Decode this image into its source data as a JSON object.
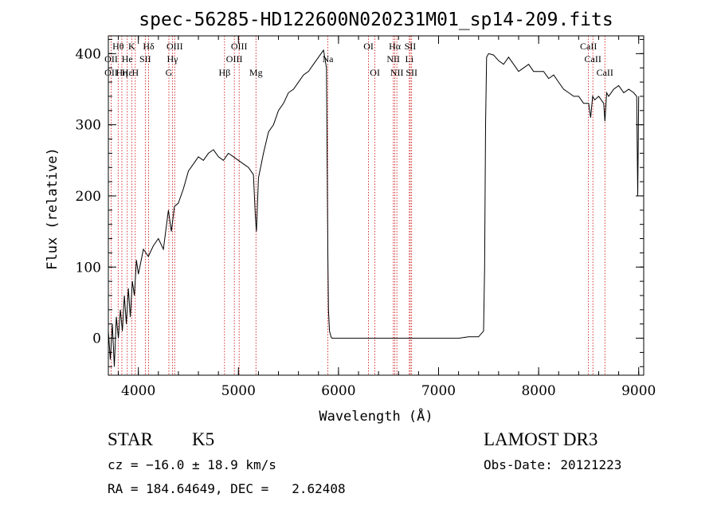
{
  "chart_data": {
    "type": "line",
    "title": "spec-56285-HD122600N020231M01_sp14-209.fits",
    "xlabel": "Wavelength (Å)",
    "ylabel": "Flux (relative)",
    "xlim": [
      3700,
      9050
    ],
    "ylim": [
      -52,
      425
    ],
    "xticks": [
      4000,
      5000,
      6000,
      7000,
      8000,
      9000
    ],
    "yticks": [
      0,
      100,
      200,
      300,
      400
    ],
    "grid": false,
    "series": [
      {
        "x": [
          3700,
          3720,
          3740,
          3760,
          3780,
          3800,
          3820,
          3840,
          3860,
          3880,
          3900,
          3920,
          3940,
          3960,
          3980,
          4000,
          4050,
          4100,
          4150,
          4200,
          4250,
          4300,
          4330,
          4360,
          4400,
          4450,
          4500,
          4550,
          4600,
          4650,
          4700,
          4750,
          4800,
          4850,
          4900,
          4950,
          5000,
          5050,
          5100,
          5150,
          5170,
          5180,
          5200,
          5250,
          5300,
          5350,
          5400,
          5450,
          5500,
          5550,
          5600,
          5650,
          5700,
          5750,
          5800,
          5850,
          5880,
          5893,
          5900,
          5910,
          5925,
          5935,
          5950,
          6000,
          6500,
          7000,
          7200,
          7300,
          7400,
          7450,
          7460,
          7470,
          7480,
          7500,
          7550,
          7600,
          7650,
          7700,
          7750,
          7800,
          7850,
          7900,
          7950,
          8000,
          8050,
          8100,
          8150,
          8200,
          8250,
          8300,
          8350,
          8400,
          8450,
          8500,
          8520,
          8540,
          8560,
          8600,
          8650,
          8662,
          8680,
          8700,
          8750,
          8800,
          8850,
          8900,
          8950,
          8980,
          8990,
          9000
        ],
        "values": [
          10,
          -30,
          20,
          -40,
          30,
          0,
          40,
          10,
          60,
          20,
          70,
          30,
          80,
          60,
          110,
          90,
          125,
          115,
          130,
          140,
          125,
          180,
          150,
          185,
          190,
          210,
          235,
          245,
          255,
          250,
          260,
          265,
          255,
          250,
          260,
          255,
          250,
          245,
          240,
          230,
          170,
          150,
          225,
          260,
          290,
          300,
          320,
          330,
          345,
          350,
          360,
          370,
          375,
          385,
          395,
          405,
          380,
          120,
          40,
          10,
          2,
          0,
          0,
          0,
          0,
          0,
          0,
          2,
          2,
          10,
          100,
          300,
          395,
          400,
          398,
          390,
          385,
          395,
          385,
          375,
          380,
          385,
          375,
          375,
          375,
          365,
          370,
          360,
          350,
          345,
          340,
          340,
          330,
          330,
          310,
          340,
          335,
          340,
          330,
          305,
          345,
          340,
          350,
          355,
          345,
          350,
          345,
          340,
          200,
          340
        ]
      }
    ],
    "annotations": [
      {
        "text": "Hθ",
        "x": 3798,
        "row": 1
      },
      {
        "text": "OII",
        "x": 3728,
        "row": 2
      },
      {
        "text": "OII",
        "x": 3728,
        "row": 3
      },
      {
        "text": "Hε",
        "x": 3889,
        "row": 3
      },
      {
        "text": "Hη",
        "x": 3835,
        "row": 3
      },
      {
        "text": "He",
        "x": 3889,
        "row": 2
      },
      {
        "text": "K",
        "x": 3934,
        "row": 1
      },
      {
        "text": "SII",
        "x": 4069,
        "row": 2
      },
      {
        "text": "H",
        "x": 3969,
        "row": 3
      },
      {
        "text": "Hδ",
        "x": 4102,
        "row": 1
      },
      {
        "text": "OIII",
        "x": 4363,
        "row": 1
      },
      {
        "text": "Hγ",
        "x": 4341,
        "row": 2
      },
      {
        "text": "G",
        "x": 4305,
        "row": 3
      },
      {
        "text": "Hβ",
        "x": 4861,
        "row": 3
      },
      {
        "text": "OIII",
        "x": 5007,
        "row": 1
      },
      {
        "text": "OIII",
        "x": 4959,
        "row": 2
      },
      {
        "text": "Mg",
        "x": 5175,
        "row": 3
      },
      {
        "text": "Na",
        "x": 5893,
        "row": 2
      },
      {
        "text": "OI",
        "x": 6300,
        "row": 1
      },
      {
        "text": "OI",
        "x": 6364,
        "row": 3
      },
      {
        "text": "Hα",
        "x": 6563,
        "row": 1
      },
      {
        "text": "SII",
        "x": 6717,
        "row": 1
      },
      {
        "text": "NII",
        "x": 6548,
        "row": 2
      },
      {
        "text": "Li",
        "x": 6708,
        "row": 2
      },
      {
        "text": "NII",
        "x": 6583,
        "row": 3
      },
      {
        "text": "SII",
        "x": 6731,
        "row": 3
      },
      {
        "text": "CaII",
        "x": 8498,
        "row": 1
      },
      {
        "text": "CaII",
        "x": 8542,
        "row": 2
      },
      {
        "text": "CaII",
        "x": 8662,
        "row": 3
      }
    ],
    "reference_lines_x": [
      3728,
      3798,
      3835,
      3889,
      3934,
      3969,
      4069,
      4102,
      4305,
      4341,
      4363,
      4861,
      4959,
      5007,
      5175,
      5893,
      6300,
      6364,
      6548,
      6563,
      6583,
      6708,
      6717,
      6731,
      8498,
      8542,
      8662
    ],
    "colors": {
      "spectrum": "#000000",
      "reference_lines": "#cc0000"
    }
  },
  "info": {
    "object_type": "STAR",
    "subclass": "K5",
    "survey": "LAMOST DR3",
    "redshift_line": "cz = −16.0 ± 18.9 km/s",
    "obs_date_line": "Obs-Date: 20121223",
    "coords_line": "RA = 184.64649, DEC =   2.62408"
  }
}
